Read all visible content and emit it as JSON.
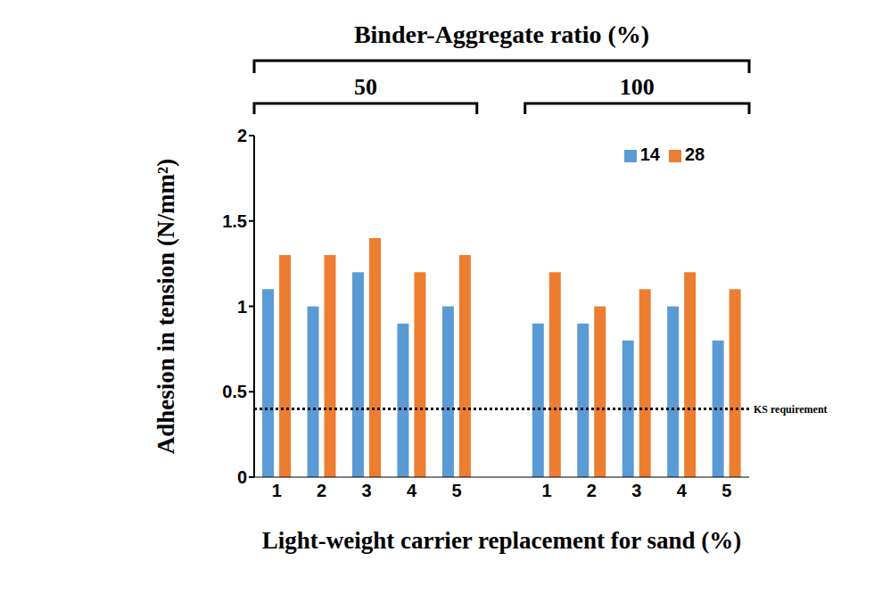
{
  "chart_data": {
    "type": "bar",
    "title": "Binder-Aggregate ratio (%)",
    "x_label": "Light-weight carrier replacement for sand (%)",
    "y_label": "Adhesion in tension (N/mm²)",
    "groups": [
      {
        "label": "50",
        "categories": [
          "1",
          "2",
          "3",
          "4",
          "5"
        ],
        "series": [
          {
            "name": "14",
            "color": "#5b9bd5",
            "values": [
              1.1,
              1.0,
              1.2,
              0.9,
              1.0
            ]
          },
          {
            "name": "28",
            "color": "#ed7d31",
            "values": [
              1.3,
              1.3,
              1.4,
              1.2,
              1.3
            ]
          }
        ]
      },
      {
        "label": "100",
        "categories": [
          "1",
          "2",
          "3",
          "4",
          "5"
        ],
        "series": [
          {
            "name": "14",
            "color": "#5b9bd5",
            "values": [
              0.9,
              0.9,
              0.8,
              1.0,
              0.8
            ]
          },
          {
            "name": "28",
            "color": "#ed7d31",
            "values": [
              1.2,
              1.0,
              1.1,
              1.2,
              1.1
            ]
          }
        ]
      }
    ],
    "ylim": [
      0,
      2
    ],
    "yticks": [
      0,
      0.5,
      1,
      1.5,
      2
    ],
    "grid": false,
    "legend": "upper right",
    "reference_lines": [
      {
        "value": 0.4,
        "label": "KS requirement",
        "line_style": "dotted"
      }
    ]
  }
}
